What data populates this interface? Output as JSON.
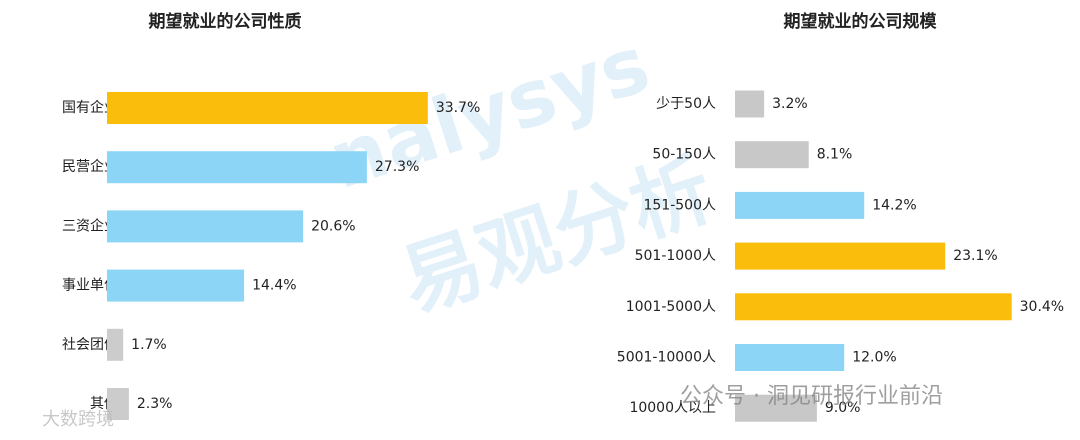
{
  "chart_data": [
    {
      "type": "bar",
      "orientation": "horizontal",
      "title": "期望就业的公司性质",
      "categories": [
        "国有企业",
        "民营企业",
        "三资企业",
        "事业单位",
        "社会团体",
        "其他"
      ],
      "values": [
        33.7,
        27.3,
        20.6,
        14.4,
        1.7,
        2.3
      ],
      "value_labels": [
        "33.7%",
        "27.3%",
        "20.6%",
        "14.4%",
        "1.7%",
        "2.3%"
      ],
      "colors": [
        "#fbbd0b",
        "#8dd5f6",
        "#8dd5f6",
        "#8dd5f6",
        "#cccccc",
        "#cccccc"
      ]
    },
    {
      "type": "bar",
      "orientation": "horizontal",
      "title": "期望就业的公司规模",
      "categories": [
        "少于50人",
        "50-150人",
        "151-500人",
        "501-1000人",
        "1001-5000人",
        "5001-10000人",
        "10000人以上"
      ],
      "values": [
        3.2,
        8.1,
        14.2,
        23.1,
        30.4,
        12.0,
        9.0
      ],
      "value_labels": [
        "3.2%",
        "8.1%",
        "14.2%",
        "23.1%",
        "30.4%",
        "12.0%",
        "9.0%"
      ],
      "colors": [
        "#c8c8c8",
        "#c8c8c8",
        "#8dd5f6",
        "#fbbd0b",
        "#fbbd0b",
        "#8dd5f6",
        "#c8c8c8"
      ]
    }
  ],
  "watermarks": [
    "nalysys",
    "易观分析",
    "公众号 · 洞见研报行业前沿",
    "大数跨境"
  ]
}
